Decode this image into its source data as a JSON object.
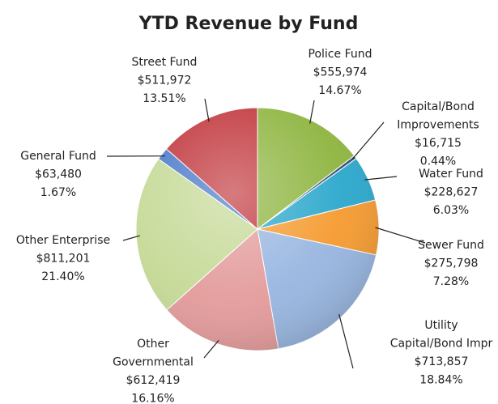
{
  "chart_data": {
    "type": "pie",
    "title": "YTD Revenue by Fund",
    "categories": [
      "Police Fund",
      "Capital/Bond Improvements",
      "Water Fund",
      "Sewer Fund",
      "Utility Capital/Bond Impr",
      "Other Governmental",
      "Other Enterprise",
      "General Fund",
      "Street Fund"
    ],
    "values": [
      555974,
      16715,
      228627,
      275798,
      713857,
      612419,
      811201,
      63480,
      511972
    ],
    "value_labels": [
      "$555,974",
      "$16,715",
      "$228,627",
      "$275,798",
      "$713,857",
      "$612,419",
      "$811,201",
      "$63,480",
      "$511,972"
    ],
    "percent_labels": [
      "14.67%",
      "0.44%",
      "6.03%",
      "7.28%",
      "18.84%",
      "16.16%",
      "21.40%",
      "1.67%",
      "13.51%"
    ],
    "colors": [
      "#8db43e",
      "#2c4d75",
      "#2aa7cc",
      "#f59a2f",
      "#97b5e0",
      "#e39a9a",
      "#c5d995",
      "#4777c8",
      "#c0343a"
    ]
  }
}
